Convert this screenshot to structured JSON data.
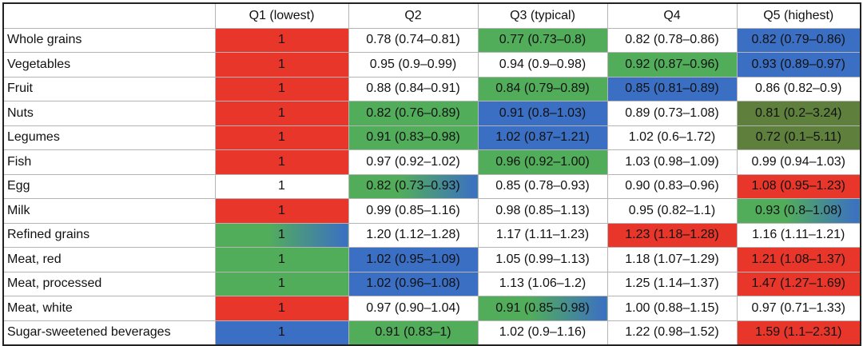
{
  "chart_data": {
    "type": "table",
    "columns": [
      "",
      "Q1 (lowest)",
      "Q2",
      "Q3 (typical)",
      "Q4",
      "Q5 (highest)"
    ],
    "rows": [
      {
        "label": "Whole grains",
        "cells": [
          {
            "text": "1",
            "color": "#e8362a"
          },
          {
            "text": "0.78 (0.74–0.81)",
            "color": "#ffffff"
          },
          {
            "text": "0.77 (0.73–0.8)",
            "color": "#52ad5b"
          },
          {
            "text": "0.82 (0.78–0.86)",
            "color": "#ffffff"
          },
          {
            "text": "0.82 (0.79–0.86)",
            "color": "#3b6fc4"
          }
        ]
      },
      {
        "label": "Vegetables",
        "cells": [
          {
            "text": "1",
            "color": "#e8362a"
          },
          {
            "text": "0.95 (0.9–0.99)",
            "color": "#ffffff"
          },
          {
            "text": "0.94 (0.9–0.98)",
            "color": "#ffffff"
          },
          {
            "text": "0.92 (0.87–0.96)",
            "color": "#52ad5b"
          },
          {
            "text": "0.93 (0.89–0.97)",
            "color": "#3b6fc4"
          }
        ]
      },
      {
        "label": "Fruit",
        "cells": [
          {
            "text": "1",
            "color": "#e8362a"
          },
          {
            "text": "0.88 (0.84–0.91)",
            "color": "#ffffff"
          },
          {
            "text": "0.84 (0.79–0.89)",
            "color": "#52ad5b"
          },
          {
            "text": "0.85 (0.81–0.89)",
            "color": "#3b6fc4"
          },
          {
            "text": "0.86 (0.82–0.9)",
            "color": "#ffffff"
          }
        ]
      },
      {
        "label": "Nuts",
        "cells": [
          {
            "text": "1",
            "color": "#e8362a"
          },
          {
            "text": "0.82 (0.76–0.89)",
            "color": "#52ad5b"
          },
          {
            "text": "0.91 (0.8–1.03)",
            "color": "#3b6fc4"
          },
          {
            "text": "0.89 (0.73–1.08)",
            "color": "#ffffff"
          },
          {
            "text": "0.81 (0.2–3.24)",
            "color": "#5f7f3c"
          }
        ]
      },
      {
        "label": "Legumes",
        "cells": [
          {
            "text": "1",
            "color": "#e8362a"
          },
          {
            "text": "0.91 (0.83–0.98)",
            "color": "#52ad5b"
          },
          {
            "text": "1.02 (0.87–1.21)",
            "color": "#3b6fc4"
          },
          {
            "text": "1.02 (0.6–1.72)",
            "color": "#ffffff"
          },
          {
            "text": "0.72 (0.1–5.11)",
            "color": "#5f7f3c"
          }
        ]
      },
      {
        "label": "Fish",
        "cells": [
          {
            "text": "1",
            "color": "#e8362a"
          },
          {
            "text": "0.97 (0.92–1.02)",
            "color": "#ffffff"
          },
          {
            "text": "0.96 (0.92–1.00)",
            "color": "#52ad5b"
          },
          {
            "text": "1.03 (0.98–1.09)",
            "color": "#ffffff"
          },
          {
            "text": "0.99 (0.94–1.03)",
            "color": "#ffffff"
          }
        ]
      },
      {
        "label": "Egg",
        "cells": [
          {
            "text": "1",
            "color": "#ffffff"
          },
          {
            "text": "0.82 (0.73–0.93)",
            "color": "#52ad5b",
            "color2": "#3b6fc4"
          },
          {
            "text": "0.85 (0.78–0.93)",
            "color": "#ffffff"
          },
          {
            "text": "0.90 (0.83–0.96)",
            "color": "#ffffff"
          },
          {
            "text": "1.08 (0.95–1.23)",
            "color": "#e8362a"
          }
        ]
      },
      {
        "label": "Milk",
        "cells": [
          {
            "text": "1",
            "color": "#e8362a"
          },
          {
            "text": "0.99 (0.85–1.16)",
            "color": "#ffffff"
          },
          {
            "text": "0.98 (0.85–1.13)",
            "color": "#ffffff"
          },
          {
            "text": "0.95 (0.82–1.1)",
            "color": "#ffffff"
          },
          {
            "text": "0.93 (0.8–1.08)",
            "color": "#52ad5b",
            "color2": "#3b6fc4"
          }
        ]
      },
      {
        "label": "Refined grains",
        "cells": [
          {
            "text": "1",
            "color": "#52ad5b",
            "color2": "#3b6fc4"
          },
          {
            "text": "1.20 (1.12–1.28)",
            "color": "#ffffff"
          },
          {
            "text": "1.17 (1.11–1.23)",
            "color": "#ffffff"
          },
          {
            "text": "1.23 (1.18–1.28)",
            "color": "#e8362a"
          },
          {
            "text": "1.16 (1.11–1.21)",
            "color": "#ffffff"
          }
        ]
      },
      {
        "label": "Meat, red",
        "cells": [
          {
            "text": "1",
            "color": "#52ad5b"
          },
          {
            "text": "1.02 (0.95–1.09)",
            "color": "#3b6fc4"
          },
          {
            "text": "1.05 (0.99–1.13)",
            "color": "#ffffff"
          },
          {
            "text": "1.18 (1.07–1.29)",
            "color": "#ffffff"
          },
          {
            "text": "1.21 (1.08–1.37)",
            "color": "#e8362a"
          }
        ]
      },
      {
        "label": "Meat, processed",
        "cells": [
          {
            "text": "1",
            "color": "#52ad5b"
          },
          {
            "text": "1.02 (0.96–1.08)",
            "color": "#3b6fc4"
          },
          {
            "text": "1.13 (1.06–1.2)",
            "color": "#ffffff"
          },
          {
            "text": "1.25 (1.14–1.37)",
            "color": "#ffffff"
          },
          {
            "text": "1.47 (1.27–1.69)",
            "color": "#e8362a"
          }
        ]
      },
      {
        "label": "Meat, white",
        "cells": [
          {
            "text": "1",
            "color": "#e8362a"
          },
          {
            "text": "0.97 (0.90–1.04)",
            "color": "#ffffff"
          },
          {
            "text": "0.91 (0.85–0.98)",
            "color": "#52ad5b",
            "color2": "#3b6fc4"
          },
          {
            "text": "1.00 (0.88–1.15)",
            "color": "#ffffff"
          },
          {
            "text": "0.97 (0.71–1.33)",
            "color": "#ffffff"
          }
        ]
      },
      {
        "label": "Sugar-sweetened beverages",
        "cells": [
          {
            "text": "1",
            "color": "#3b6fc4"
          },
          {
            "text": "0.91 (0.83–1)",
            "color": "#52ad5b"
          },
          {
            "text": "1.02 (0.9–1.16)",
            "color": "#ffffff"
          },
          {
            "text": "1.22 (0.98–1.52)",
            "color": "#ffffff"
          },
          {
            "text": "1.59 (1.1–2.31)",
            "color": "#e8362a"
          }
        ]
      }
    ]
  }
}
